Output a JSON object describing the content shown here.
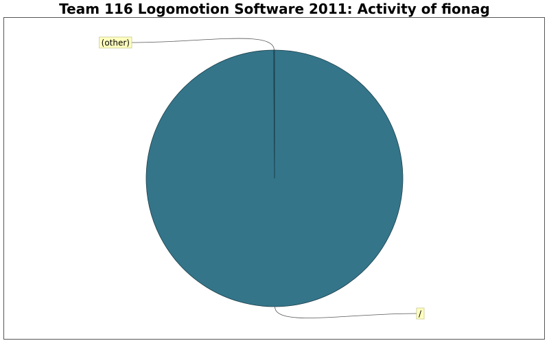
{
  "chart_data": {
    "type": "pie",
    "title": "Team 116 Logomotion Software 2011: Activity of fionag",
    "slices": [
      {
        "label": "/",
        "value": 99.9
      },
      {
        "label": "(other)",
        "value": 0.1
      }
    ],
    "legend": "none",
    "colors": {
      "slice": "#34758a",
      "outline": "#1c3f4a",
      "label_bg": "#ffffc0",
      "label_border": "#c8c88c",
      "frame": "#555555",
      "leader": "#555555"
    }
  }
}
